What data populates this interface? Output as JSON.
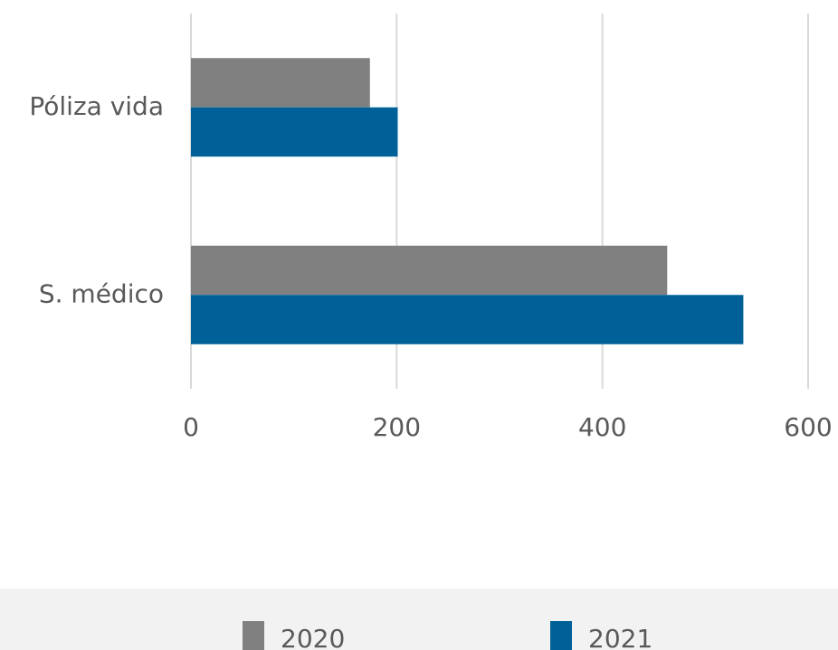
{
  "chart_data": {
    "type": "bar",
    "orientation": "horizontal",
    "categories": [
      "Póliza vida",
      "S. médico"
    ],
    "series": [
      {
        "name": "2020",
        "color": "#808080",
        "values": [
          174,
          463
        ]
      },
      {
        "name": "2021",
        "color": "#006199",
        "values": [
          201,
          537
        ]
      }
    ],
    "xlim": [
      0,
      600
    ],
    "xticks": [
      0,
      200,
      400,
      600
    ],
    "grid": true,
    "legend": "bottom"
  }
}
